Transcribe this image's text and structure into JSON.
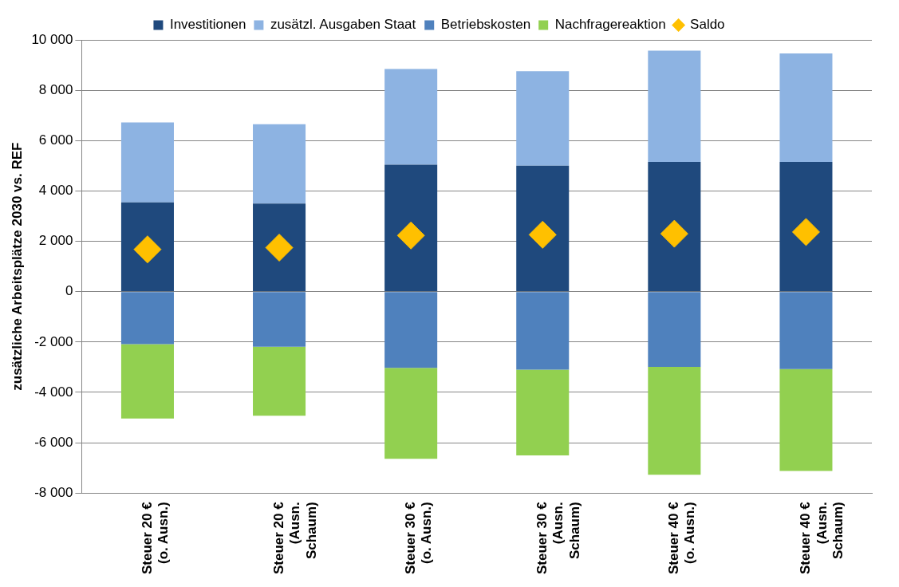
{
  "chart_data": {
    "type": "bar",
    "stacked": true,
    "ylabel": "zusätzliche Arbeitsplätze 2030 vs. REF",
    "categories": [
      "Steuer 20 €\n(o. Ausn.)",
      "Steuer 20 €\n(Ausn.\nSchaum)",
      "Steuer 30 €\n(o. Ausn.)",
      "Steuer 30 €\n(Ausn.\nSchaum)",
      "Steuer 40 €\n(o. Ausn.)",
      "Steuer 40 €\n(Ausn.\nSchaum)"
    ],
    "series": [
      {
        "name": "Investitionen",
        "color": "#1f497d",
        "values": [
          3550,
          3500,
          5040,
          5000,
          5150,
          5150
        ]
      },
      {
        "name": "zusätzl. Ausgaben Staat",
        "color": "#8db3e2",
        "values": [
          3170,
          3150,
          3800,
          3760,
          4420,
          4310
        ]
      },
      {
        "name": "Betriebskosten",
        "color": "#4f81bd",
        "values": [
          -2080,
          -2190,
          -3030,
          -3100,
          -2990,
          -3070
        ]
      },
      {
        "name": "Nachfragereaktion",
        "color": "#92d050",
        "values": [
          -2960,
          -2740,
          -3610,
          -3400,
          -4280,
          -4050
        ]
      },
      {
        "name": "Saldo",
        "type": "scatter",
        "marker": "diamond",
        "color": "#ffc000",
        "values": [
          1680,
          1750,
          2230,
          2260,
          2300,
          2370
        ]
      }
    ],
    "ylim": [
      -8000,
      10000
    ],
    "yticks": [
      {
        "value": -8000,
        "label": "-8 000"
      },
      {
        "value": -6000,
        "label": "-6 000"
      },
      {
        "value": -4000,
        "label": "-4 000"
      },
      {
        "value": -2000,
        "label": "-2 000"
      },
      0,
      {
        "value": 2000,
        "label": "2 000"
      },
      {
        "value": 4000,
        "label": "4 000"
      },
      {
        "value": 6000,
        "label": "6 000"
      },
      {
        "value": 8000,
        "label": "8 000"
      },
      {
        "value": 10000,
        "label": "10 000"
      }
    ],
    "grid": "y",
    "legend": "top"
  }
}
